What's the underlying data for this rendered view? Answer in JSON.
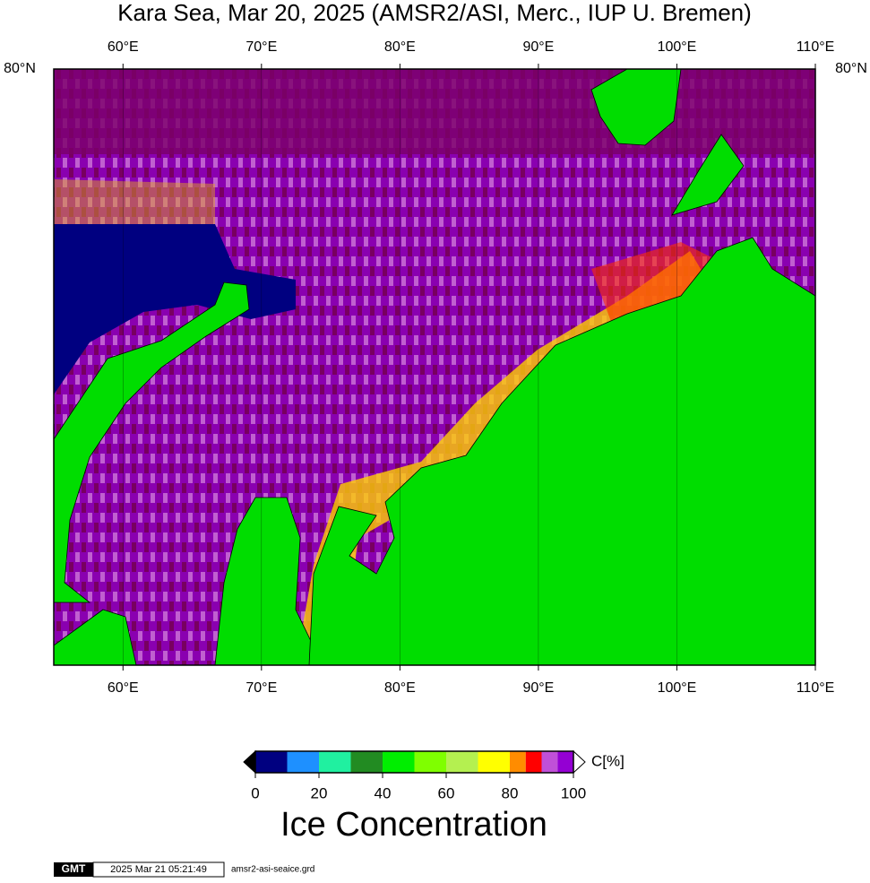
{
  "title": "Kara Sea, Mar 20, 2025 (AMSR2/ASI, Merc., IUP U. Bremen)",
  "map": {
    "lonlim": [
      55,
      110
    ],
    "lon_ticks": [
      {
        "value": 60,
        "label": "60°E"
      },
      {
        "value": 70,
        "label": "70°E"
      },
      {
        "value": 80,
        "label": "80°E"
      },
      {
        "value": 90,
        "label": "90°E"
      },
      {
        "value": 100,
        "label": "100°E"
      },
      {
        "value": 110,
        "label": "110°E"
      }
    ],
    "lat_label": "80°N"
  },
  "colorbar": {
    "lim": [
      0,
      100
    ],
    "ticks": [
      0,
      20,
      40,
      60,
      80,
      100
    ],
    "bounds": [
      0,
      10,
      20,
      30,
      40,
      50,
      60,
      70,
      80,
      85,
      90,
      95,
      100
    ],
    "colors": [
      "#000080",
      "#1e90ff",
      "#20f0a0",
      "#228b22",
      "#00ee00",
      "#7fff00",
      "#b4f050",
      "#ffff00",
      "#ff8c00",
      "#ff0000",
      "#c050d8",
      "#9400d3"
    ],
    "unit": "C[%]",
    "title": "Ice Concentration"
  },
  "footer": {
    "logo": "GMT",
    "timestamp": "2025 Mar 21 05:21:49",
    "file": "amsr2-asi-seaice.grd"
  }
}
